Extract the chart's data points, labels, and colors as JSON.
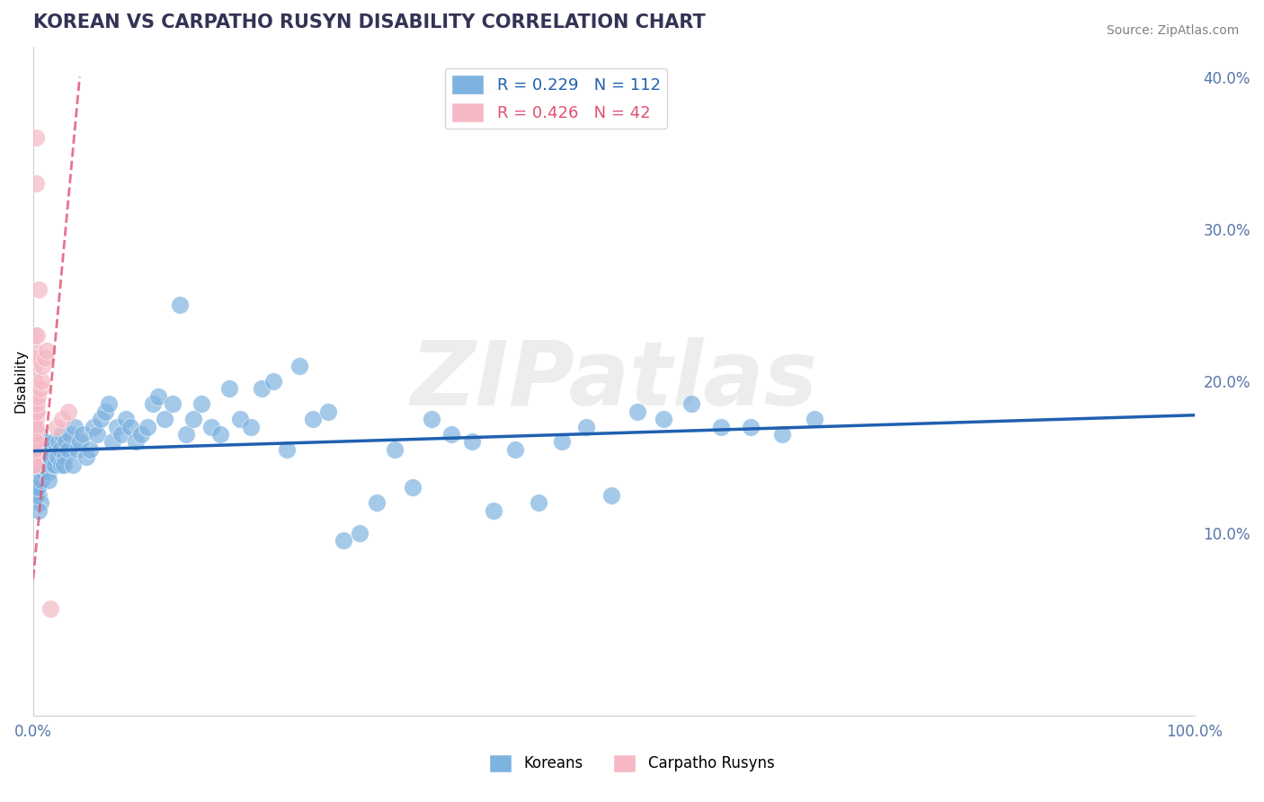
{
  "title": "KOREAN VS CARPATHO RUSYN DISABILITY CORRELATION CHART",
  "source_text": "Source: ZipAtlas.com",
  "xlabel": "",
  "ylabel": "Disability",
  "xlim": [
    0,
    1.0
  ],
  "ylim": [
    -0.02,
    0.42
  ],
  "yticks": [
    0.0,
    0.1,
    0.2,
    0.3,
    0.4
  ],
  "xticks": [
    0.0,
    1.0
  ],
  "xtick_labels": [
    "0.0%",
    "100.0%"
  ],
  "ytick_labels": [
    "",
    "10.0%",
    "20.0%",
    "30.0%",
    "40.0%"
  ],
  "legend_korean": "R = 0.229   N = 112",
  "legend_rusyn": "R = 0.426   N = 42",
  "blue_color": "#7eb3e0",
  "pink_color": "#f5b8c4",
  "blue_line_color": "#2060b0",
  "pink_line_color": "#e05070",
  "watermark": "ZIPatlas",
  "title_color": "#333355",
  "axis_label_color": "#5577aa",
  "tick_color": "#5577aa",
  "grid_color": "#cccccc",
  "korean_x": [
    0.002,
    0.003,
    0.002,
    0.004,
    0.005,
    0.003,
    0.002,
    0.004,
    0.006,
    0.005,
    0.003,
    0.004,
    0.007,
    0.005,
    0.006,
    0.004,
    0.003,
    0.005,
    0.006,
    0.004,
    0.005,
    0.007,
    0.006,
    0.008,
    0.009,
    0.007,
    0.006,
    0.008,
    0.01,
    0.009,
    0.012,
    0.011,
    0.013,
    0.015,
    0.014,
    0.013,
    0.016,
    0.018,
    0.017,
    0.015,
    0.02,
    0.019,
    0.022,
    0.021,
    0.024,
    0.023,
    0.025,
    0.027,
    0.026,
    0.028,
    0.03,
    0.032,
    0.034,
    0.036,
    0.038,
    0.04,
    0.043,
    0.046,
    0.049,
    0.052,
    0.055,
    0.058,
    0.062,
    0.065,
    0.068,
    0.072,
    0.076,
    0.08,
    0.084,
    0.088,
    0.093,
    0.098,
    0.103,
    0.108,
    0.113,
    0.12,
    0.126,
    0.132,
    0.138,
    0.145,
    0.153,
    0.161,
    0.169,
    0.178,
    0.187,
    0.197,
    0.207,
    0.218,
    0.229,
    0.241,
    0.254,
    0.267,
    0.281,
    0.296,
    0.311,
    0.327,
    0.343,
    0.36,
    0.378,
    0.396,
    0.415,
    0.435,
    0.455,
    0.476,
    0.498,
    0.52,
    0.543,
    0.567,
    0.592,
    0.618,
    0.645,
    0.673
  ],
  "korean_y": [
    0.14,
    0.155,
    0.13,
    0.145,
    0.125,
    0.16,
    0.135,
    0.15,
    0.12,
    0.165,
    0.14,
    0.13,
    0.145,
    0.115,
    0.155,
    0.135,
    0.125,
    0.145,
    0.14,
    0.13,
    0.155,
    0.145,
    0.15,
    0.16,
    0.14,
    0.135,
    0.145,
    0.15,
    0.155,
    0.16,
    0.145,
    0.155,
    0.14,
    0.15,
    0.145,
    0.135,
    0.155,
    0.16,
    0.145,
    0.15,
    0.155,
    0.145,
    0.16,
    0.15,
    0.145,
    0.155,
    0.165,
    0.15,
    0.145,
    0.16,
    0.155,
    0.165,
    0.145,
    0.17,
    0.155,
    0.16,
    0.165,
    0.15,
    0.155,
    0.17,
    0.165,
    0.175,
    0.18,
    0.185,
    0.16,
    0.17,
    0.165,
    0.175,
    0.17,
    0.16,
    0.165,
    0.17,
    0.185,
    0.19,
    0.175,
    0.185,
    0.25,
    0.165,
    0.175,
    0.185,
    0.17,
    0.165,
    0.195,
    0.175,
    0.17,
    0.195,
    0.2,
    0.155,
    0.21,
    0.175,
    0.18,
    0.095,
    0.1,
    0.12,
    0.155,
    0.13,
    0.175,
    0.165,
    0.16,
    0.115,
    0.155,
    0.12,
    0.16,
    0.17,
    0.125,
    0.18,
    0.175,
    0.185,
    0.17,
    0.17,
    0.165,
    0.175
  ],
  "rusyn_x": [
    0.001,
    0.001,
    0.001,
    0.001,
    0.001,
    0.001,
    0.001,
    0.001,
    0.001,
    0.001,
    0.001,
    0.001,
    0.001,
    0.001,
    0.001,
    0.001,
    0.001,
    0.001,
    0.001,
    0.001,
    0.002,
    0.002,
    0.002,
    0.002,
    0.002,
    0.002,
    0.002,
    0.002,
    0.003,
    0.003,
    0.003,
    0.004,
    0.005,
    0.006,
    0.007,
    0.008,
    0.01,
    0.012,
    0.015,
    0.02,
    0.025,
    0.03
  ],
  "rusyn_y": [
    0.145,
    0.155,
    0.16,
    0.15,
    0.165,
    0.17,
    0.175,
    0.145,
    0.155,
    0.16,
    0.21,
    0.22,
    0.23,
    0.215,
    0.175,
    0.18,
    0.19,
    0.2,
    0.165,
    0.17,
    0.33,
    0.36,
    0.165,
    0.175,
    0.18,
    0.185,
    0.17,
    0.16,
    0.23,
    0.18,
    0.185,
    0.19,
    0.26,
    0.195,
    0.2,
    0.21,
    0.215,
    0.22,
    0.05,
    0.17,
    0.175,
    0.18
  ]
}
